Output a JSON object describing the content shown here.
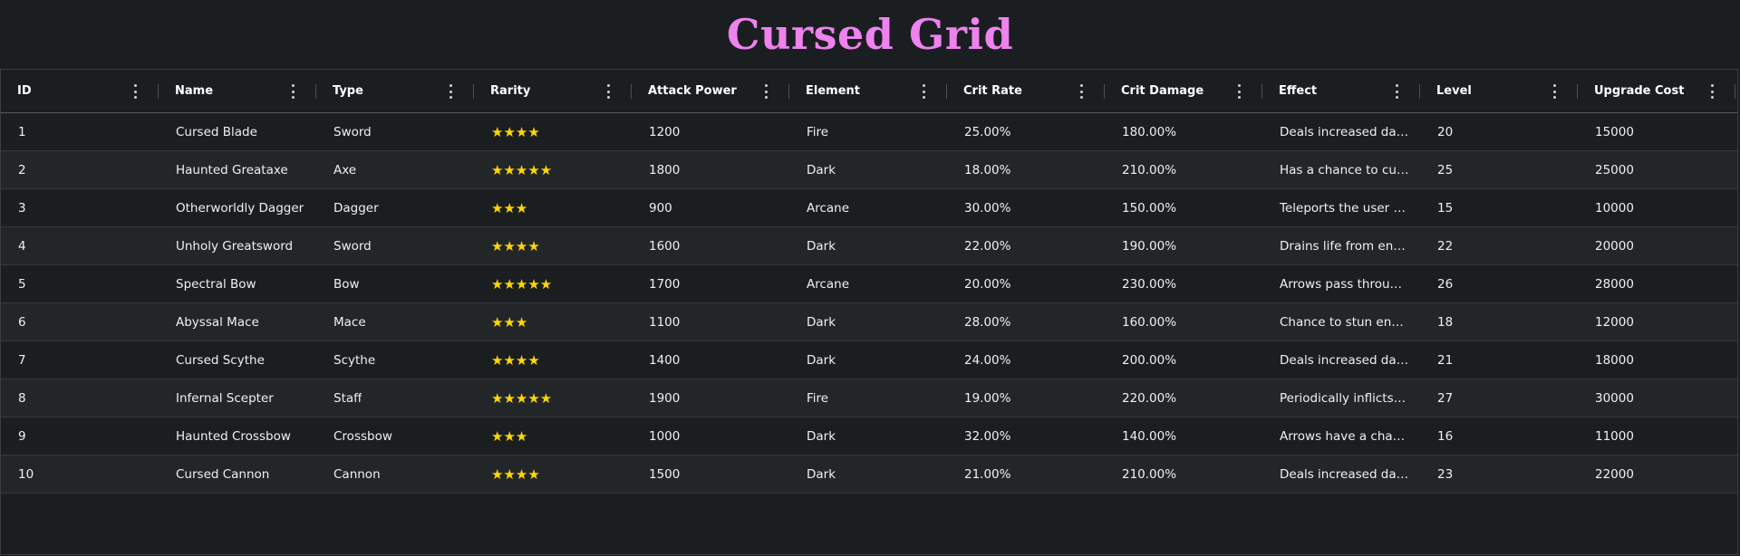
{
  "title": "Cursed Grid",
  "colors": {
    "title": "#ee82ee",
    "background": "#1b1e21",
    "stars": "#ffd700"
  },
  "columns": [
    "ID",
    "Name",
    "Type",
    "Rarity",
    "Attack Power",
    "Element",
    "Crit Rate",
    "Crit Damage",
    "Effect",
    "Level",
    "Upgrade Cost"
  ],
  "rows": [
    [
      "1",
      "Cursed Blade",
      "Sword",
      "★★★★",
      "1200",
      "Fire",
      "25.00%",
      "180.00%",
      "Deals increased damage to cursed enemies",
      "20",
      "15000"
    ],
    [
      "2",
      "Haunted Greataxe",
      "Axe",
      "★★★★★",
      "1800",
      "Dark",
      "18.00%",
      "210.00%",
      "Has a chance to curse the enemy",
      "25",
      "25000"
    ],
    [
      "3",
      "Otherworldly Dagger",
      "Dagger",
      "★★★",
      "900",
      "Arcane",
      "30.00%",
      "150.00%",
      "Teleports the user behind the enemy",
      "15",
      "10000"
    ],
    [
      "4",
      "Unholy Greatsword",
      "Sword",
      "★★★★",
      "1600",
      "Dark",
      "22.00%",
      "190.00%",
      "Drains life from enemies",
      "22",
      "20000"
    ],
    [
      "5",
      "Spectral Bow",
      "Bow",
      "★★★★★",
      "1700",
      "Arcane",
      "20.00%",
      "230.00%",
      "Arrows pass through walls",
      "26",
      "28000"
    ],
    [
      "6",
      "Abyssal Mace",
      "Mace",
      "★★★",
      "1100",
      "Dark",
      "28.00%",
      "160.00%",
      "Chance to stun enemies",
      "18",
      "12000"
    ],
    [
      "7",
      "Cursed Scythe",
      "Scythe",
      "★★★★",
      "1400",
      "Dark",
      "24.00%",
      "200.00%",
      "Deals increased damage to cursed enemies",
      "21",
      "18000"
    ],
    [
      "8",
      "Infernal Scepter",
      "Staff",
      "★★★★★",
      "1900",
      "Fire",
      "19.00%",
      "220.00%",
      "Periodically inflicts burn damage",
      "27",
      "30000"
    ],
    [
      "9",
      "Haunted Crossbow",
      "Crossbow",
      "★★★",
      "1000",
      "Dark",
      "32.00%",
      "140.00%",
      "Arrows have a chance to haunt enemies",
      "16",
      "11000"
    ],
    [
      "10",
      "Cursed Cannon",
      "Cannon",
      "★★★★",
      "1500",
      "Dark",
      "21.00%",
      "210.00%",
      "Deals increased damage to cursed enemies",
      "23",
      "22000"
    ]
  ]
}
